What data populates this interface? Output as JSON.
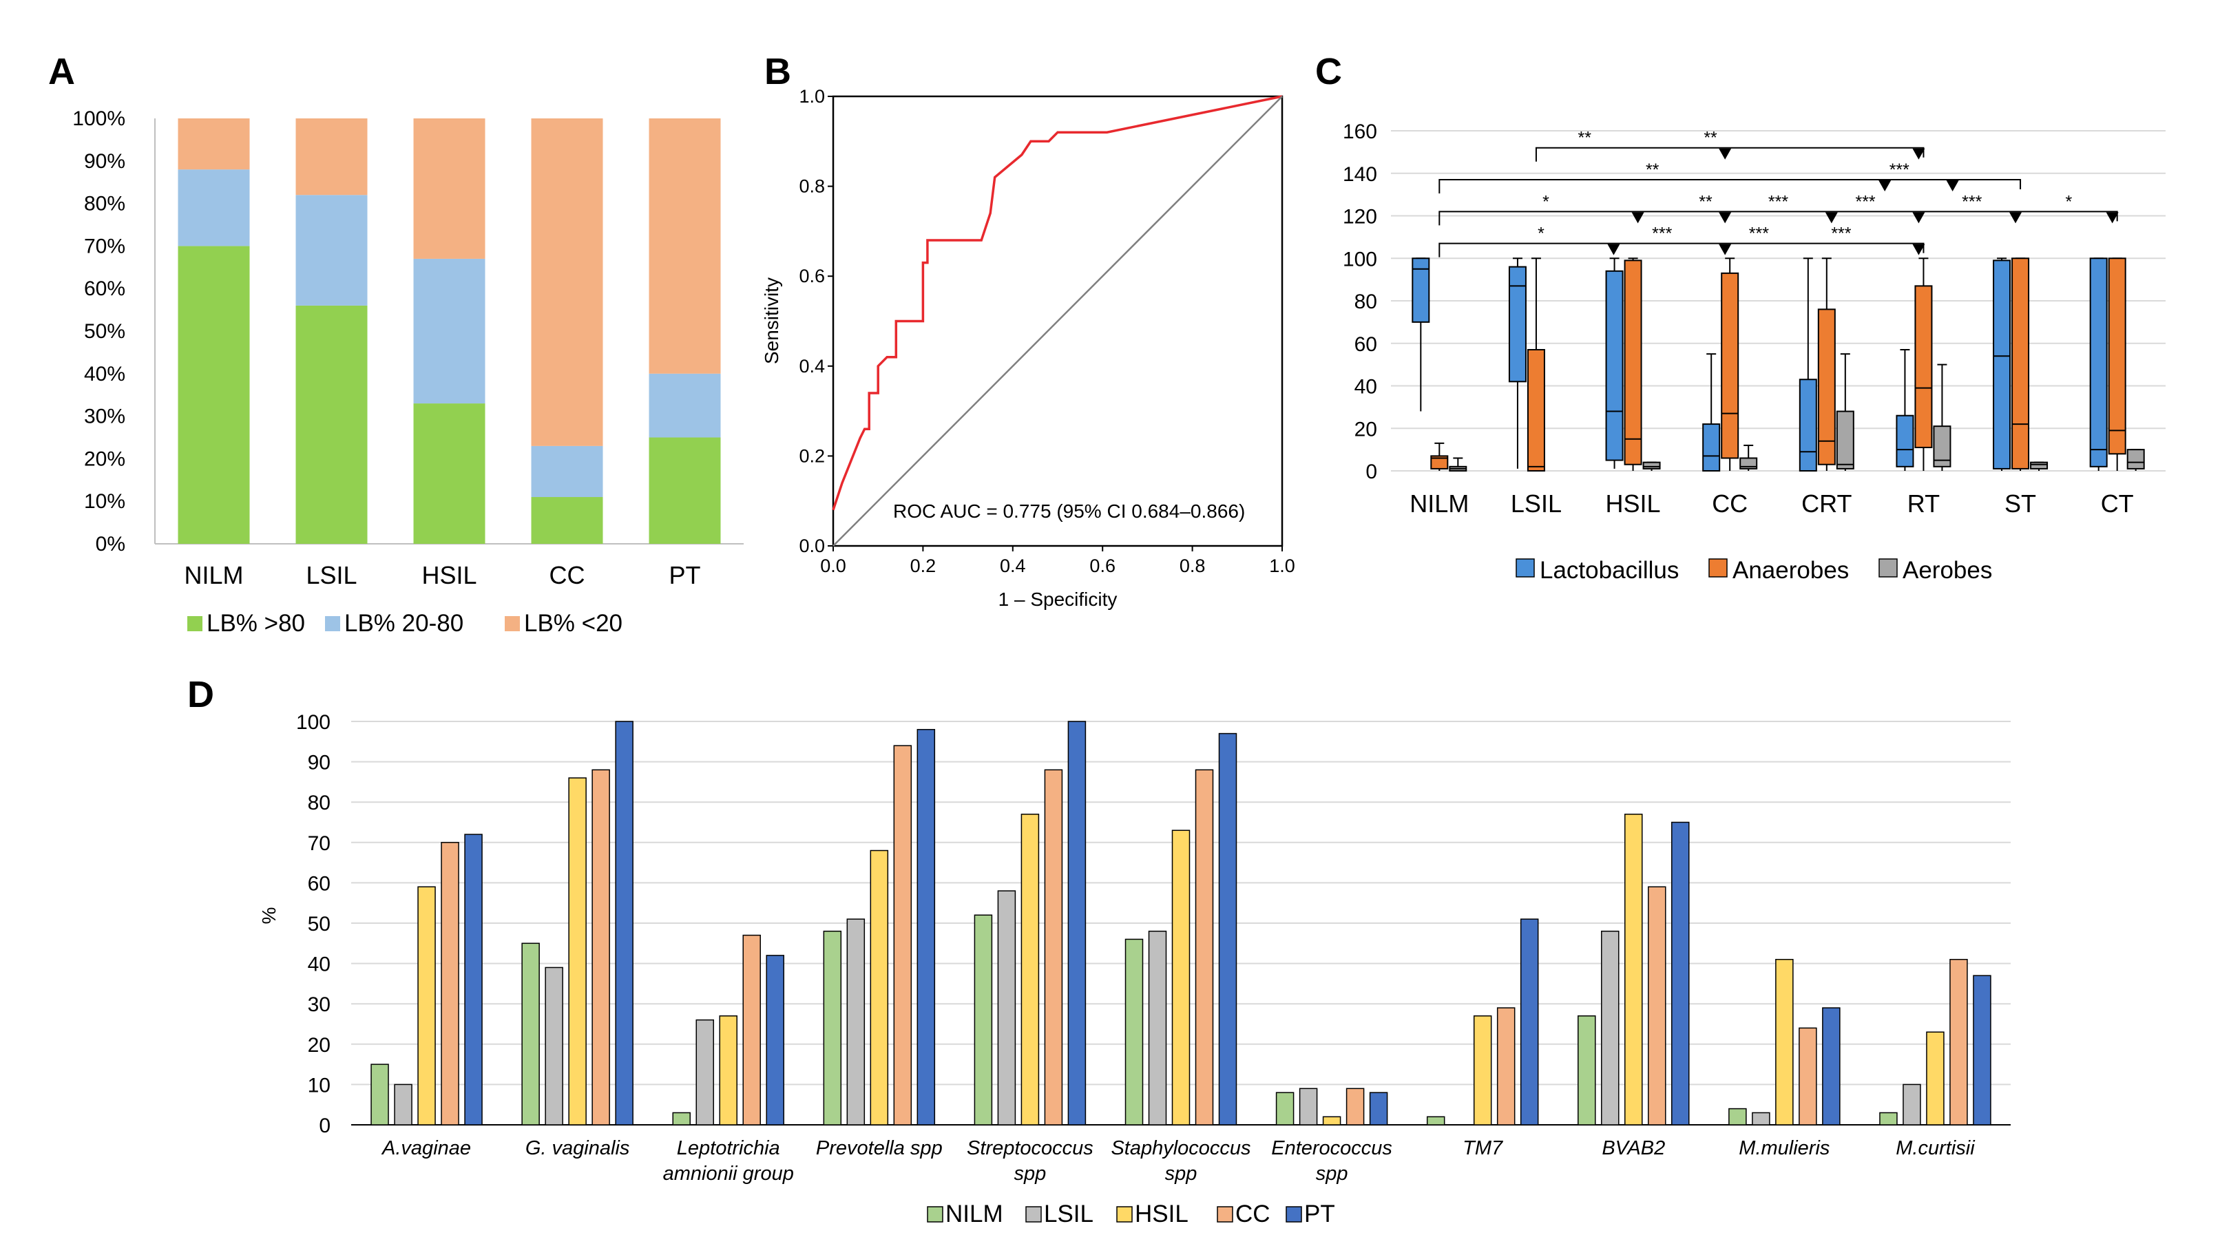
{
  "colors": {
    "green": "#92D050",
    "blue_light": "#9DC3E6",
    "peach": "#F4B183",
    "red": "#E8292E",
    "lacto": "#4A90D9",
    "anaer": "#ED7D31",
    "aerob": "#A6A6A6",
    "nilm": "#A9D18E",
    "lsil": "#BFBFBF",
    "hsil": "#FFD966",
    "cc": "#F4B183",
    "pt": "#4472C4"
  },
  "panels": {
    "A": {
      "letter": "A",
      "x_categories": [
        "NILM",
        "LSIL",
        "HSIL",
        "CC",
        "PT"
      ],
      "y_ticks": [
        "0%",
        "10%",
        "20%",
        "30%",
        "40%",
        "50%",
        "60%",
        "70%",
        "80%",
        "90%",
        "100%"
      ],
      "legend": [
        "LB% >80",
        "LB% 20-80",
        "LB% <20"
      ]
    },
    "B": {
      "letter": "B",
      "x_label": "1 – Specificity",
      "y_label": "Sensitivity",
      "x_ticks": [
        "0.0",
        "0.2",
        "0.4",
        "0.6",
        "0.8",
        "1.0"
      ],
      "y_ticks": [
        "0.0",
        "0.2",
        "0.4",
        "0.6",
        "0.8",
        "1.0"
      ],
      "annotation": "ROC AUC = 0.775 (95% CI 0.684–0.866)"
    },
    "C": {
      "letter": "C",
      "x_categories": [
        "NILM",
        "LSIL",
        "HSIL",
        "CC",
        "CRT",
        "RT",
        "ST",
        "CT"
      ],
      "y_ticks": [
        "0",
        "20",
        "40",
        "60",
        "80",
        "100",
        "120",
        "140",
        "160"
      ],
      "legend": [
        "Lactobacillus",
        "Anaerobes",
        "Aerobes"
      ]
    },
    "D": {
      "letter": "D",
      "y_label": "%",
      "y_ticks": [
        "0",
        "10",
        "20",
        "30",
        "40",
        "50",
        "60",
        "70",
        "80",
        "90",
        "100"
      ],
      "species_lines": [
        [
          "A.vaginae"
        ],
        [
          "G. vaginalis"
        ],
        [
          "Leptotrichia",
          "amnionii group"
        ],
        [
          "Prevotella spp"
        ],
        [
          "Streptococcus",
          "spp"
        ],
        [
          "Staphylococcus",
          "spp"
        ],
        [
          "Enterococcus",
          "spp"
        ],
        [
          "TM7"
        ],
        [
          "BVAB2"
        ],
        [
          "M.mulieris"
        ],
        [
          "M.curtisii"
        ]
      ],
      "legend": [
        "NILM",
        "LSIL",
        "HSIL",
        "CC",
        "PT"
      ]
    }
  },
  "chart_data": [
    {
      "panel": "A",
      "type": "bar",
      "stacked": true,
      "categories": [
        "NILM",
        "LSIL",
        "HSIL",
        "CC",
        "PT"
      ],
      "series": [
        {
          "name": "LB% >80",
          "color": "#92D050",
          "values": [
            70,
            56,
            33,
            11,
            25
          ]
        },
        {
          "name": "LB% 20-80",
          "color": "#9DC3E6",
          "values": [
            18,
            26,
            34,
            12,
            15
          ]
        },
        {
          "name": "LB% <20",
          "color": "#F4B183",
          "values": [
            12,
            18,
            33,
            77,
            60
          ]
        }
      ],
      "ylim": [
        0,
        100
      ],
      "yunit": "%",
      "legend_position": "bottom"
    },
    {
      "panel": "B",
      "type": "line",
      "title": "",
      "xlabel": "1 – Specificity",
      "ylabel": "Sensitivity",
      "xlim": [
        0,
        1
      ],
      "ylim": [
        0,
        1
      ],
      "series": [
        {
          "name": "ROC",
          "color": "#E8292E",
          "points": [
            [
              0,
              0.08
            ],
            [
              0.02,
              0.14
            ],
            [
              0.04,
              0.19
            ],
            [
              0.06,
              0.24
            ],
            [
              0.07,
              0.26
            ],
            [
              0.08,
              0.26
            ],
            [
              0.08,
              0.34
            ],
            [
              0.1,
              0.34
            ],
            [
              0.1,
              0.4
            ],
            [
              0.12,
              0.42
            ],
            [
              0.14,
              0.42
            ],
            [
              0.14,
              0.5
            ],
            [
              0.2,
              0.5
            ],
            [
              0.2,
              0.63
            ],
            [
              0.21,
              0.63
            ],
            [
              0.21,
              0.68
            ],
            [
              0.33,
              0.68
            ],
            [
              0.35,
              0.74
            ],
            [
              0.36,
              0.82
            ],
            [
              0.42,
              0.87
            ],
            [
              0.44,
              0.9
            ],
            [
              0.48,
              0.9
            ],
            [
              0.5,
              0.92
            ],
            [
              0.61,
              0.92
            ],
            [
              1,
              1
            ]
          ]
        },
        {
          "name": "Reference",
          "color": "#7F7F7F",
          "points": [
            [
              0,
              0
            ],
            [
              1,
              1
            ]
          ]
        }
      ],
      "annotation": "ROC AUC = 0.775 (95% CI 0.684–0.866)"
    },
    {
      "panel": "C",
      "type": "boxplot",
      "categories": [
        "NILM",
        "LSIL",
        "HSIL",
        "CC",
        "CRT",
        "RT",
        "ST",
        "CT"
      ],
      "ylim": [
        0,
        160
      ],
      "series": [
        {
          "name": "Lactobacillus",
          "color": "#4A90D9",
          "boxes": [
            {
              "min": 28,
              "q1": 70,
              "median": 95,
              "q3": 100,
              "max": 100
            },
            {
              "min": 1,
              "q1": 42,
              "median": 87,
              "q3": 96,
              "max": 100
            },
            {
              "min": 1,
              "q1": 5,
              "median": 28,
              "q3": 94,
              "max": 100
            },
            {
              "min": 0,
              "q1": 0,
              "median": 7,
              "q3": 22,
              "max": 55
            },
            {
              "min": 0,
              "q1": 0,
              "median": 9,
              "q3": 43,
              "max": 100
            },
            {
              "min": 0,
              "q1": 2,
              "median": 10,
              "q3": 26,
              "max": 57
            },
            {
              "min": 0,
              "q1": 1,
              "median": 54,
              "q3": 99,
              "max": 100
            },
            {
              "min": 0,
              "q1": 2,
              "median": 10,
              "q3": 100,
              "max": 100
            }
          ]
        },
        {
          "name": "Anaerobes",
          "color": "#ED7D31",
          "boxes": [
            {
              "min": 0,
              "q1": 1,
              "median": 6,
              "q3": 7,
              "max": 13
            },
            {
              "min": 0,
              "q1": 0,
              "median": 2,
              "q3": 57,
              "max": 100
            },
            {
              "min": 0,
              "q1": 3,
              "median": 15,
              "q3": 99,
              "max": 100
            },
            {
              "min": 0,
              "q1": 6,
              "median": 27,
              "q3": 93,
              "max": 100
            },
            {
              "min": 0,
              "q1": 3,
              "median": 14,
              "q3": 76,
              "max": 100
            },
            {
              "min": 0,
              "q1": 11,
              "median": 39,
              "q3": 87,
              "max": 100
            },
            {
              "min": 0,
              "q1": 1,
              "median": 22,
              "q3": 100,
              "max": 100
            },
            {
              "min": 0,
              "q1": 8,
              "median": 19,
              "q3": 100,
              "max": 100
            }
          ]
        },
        {
          "name": "Aerobes",
          "color": "#A6A6A6",
          "boxes": [
            {
              "min": 0,
              "q1": 0,
              "median": 1,
              "q3": 2,
              "max": 6
            },
            null,
            {
              "min": 0,
              "q1": 1,
              "median": 2,
              "q3": 4,
              "max": 4
            },
            {
              "min": 0,
              "q1": 1,
              "median": 2,
              "q3": 6,
              "max": 12
            },
            {
              "min": 0,
              "q1": 1,
              "median": 3,
              "q3": 28,
              "max": 55
            },
            {
              "min": 0,
              "q1": 2,
              "median": 5,
              "q3": 21,
              "max": 50
            },
            {
              "min": 0,
              "q1": 1,
              "median": 3,
              "q3": 4,
              "max": 4
            },
            {
              "min": 0,
              "q1": 1,
              "median": 4,
              "q3": 10,
              "max": 10
            }
          ]
        }
      ],
      "significance": [
        {
          "y": 152,
          "from": "LSIL",
          "to": "RT",
          "labels": [
            {
              "text": "**",
              "at": 1.5
            },
            {
              "text": "**",
              "at": 2.8
            }
          ],
          "arrows": [
            2.95,
            4.95
          ]
        },
        {
          "y": 137,
          "from": "NILM",
          "to": "ST",
          "labels": [
            {
              "text": "**",
              "at": 2.2
            },
            {
              "text": "***",
              "at": 4.75
            }
          ],
          "arrows": [
            4.6,
            5.3
          ]
        },
        {
          "y": 122,
          "from": "NILM",
          "to": "CT",
          "labels": [
            {
              "text": "*",
              "at": 1.1
            },
            {
              "text": "**",
              "at": 2.75
            },
            {
              "text": "***",
              "at": 3.5
            },
            {
              "text": "***",
              "at": 4.4
            },
            {
              "text": "***",
              "at": 5.5
            },
            {
              "text": "*",
              "at": 6.5
            }
          ],
          "arrows": [
            2.05,
            2.95,
            4.05,
            4.95,
            5.95,
            6.95
          ]
        },
        {
          "y": 107,
          "from": "NILM",
          "to": "RT",
          "labels": [
            {
              "text": "*",
              "at": 1.05
            },
            {
              "text": "***",
              "at": 2.3
            },
            {
              "text": "***",
              "at": 3.3
            },
            {
              "text": "***",
              "at": 4.15
            }
          ],
          "arrows": [
            1.8,
            2.95,
            4.95
          ]
        }
      ],
      "legend_position": "bottom"
    },
    {
      "panel": "D",
      "type": "bar",
      "categories": [
        "A.vaginae",
        "G. vaginalis",
        "Leptotrichia amnionii group",
        "Prevotella spp",
        "Streptococcus spp",
        "Staphylococcus spp",
        "Enterococcus spp",
        "TM7",
        "BVAB2",
        "M.mulieris",
        "M.curtisii"
      ],
      "series": [
        {
          "name": "NILM",
          "color": "#A9D18E",
          "values": [
            15,
            45,
            3,
            48,
            52,
            46,
            8,
            2,
            27,
            4,
            3
          ]
        },
        {
          "name": "LSIL",
          "color": "#BFBFBF",
          "values": [
            10,
            39,
            26,
            51,
            58,
            48,
            9,
            0,
            48,
            3,
            10
          ]
        },
        {
          "name": "HSIL",
          "color": "#FFD966",
          "values": [
            59,
            86,
            27,
            68,
            77,
            73,
            2,
            27,
            77,
            41,
            23
          ]
        },
        {
          "name": "CC",
          "color": "#F4B183",
          "values": [
            70,
            88,
            47,
            94,
            88,
            88,
            9,
            29,
            59,
            24,
            41
          ]
        },
        {
          "name": "PT",
          "color": "#4472C4",
          "values": [
            72,
            100,
            42,
            98,
            100,
            97,
            8,
            51,
            75,
            29,
            37
          ]
        }
      ],
      "ylabel": "%",
      "ylim": [
        0,
        100
      ],
      "legend_position": "bottom"
    }
  ]
}
